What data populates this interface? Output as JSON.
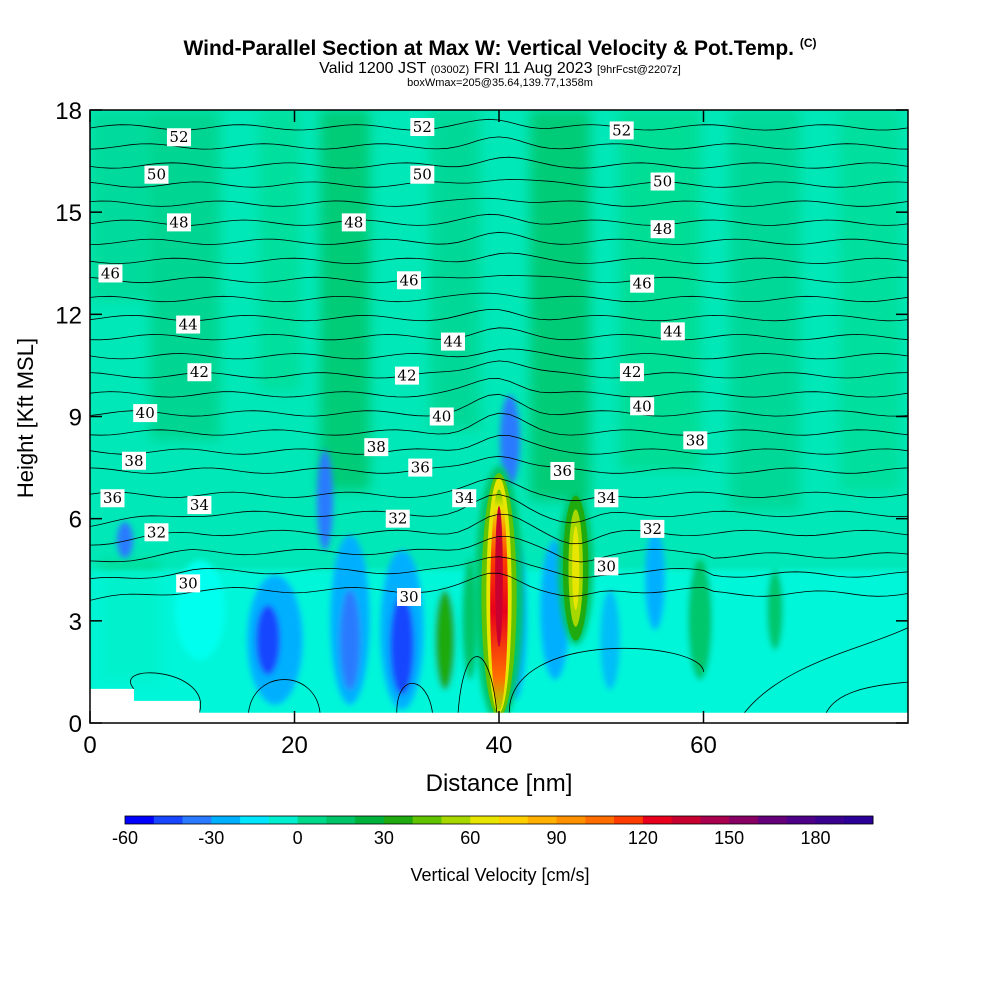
{
  "header": {
    "title_main": "Wind-Parallel Section at Max W: Vertical Velocity & Pot.Temp.",
    "title_units": "(C)",
    "valid_prefix": "Valid 1200 JST",
    "valid_utc": "(0300Z)",
    "valid_date": "FRI 11 Aug 2023",
    "forecast_info": "[9hrFcst@2207z]",
    "box_info": "boxWmax=205@35.64,139.77,1358m"
  },
  "chart_data": {
    "type": "contour",
    "xlabel": "Distance [nm]",
    "ylabel": "Height [Kft MSL]",
    "xlim": [
      0,
      80
    ],
    "ylim": [
      0,
      18
    ],
    "x_ticks": [
      0,
      20,
      40,
      60
    ],
    "y_ticks": [
      0,
      3,
      6,
      9,
      12,
      15,
      18
    ],
    "colorbar": {
      "label": "Vertical Velocity [cm/s]",
      "min": -60,
      "max": 200,
      "step": 10,
      "tick_values": [
        -60,
        -30,
        0,
        30,
        60,
        90,
        120,
        150,
        180
      ],
      "colors": [
        "#0000ff",
        "#1846ff",
        "#2a7aff",
        "#00b0ff",
        "#00e6ff",
        "#00efcf",
        "#00d98a",
        "#00c468",
        "#00b23c",
        "#1faa10",
        "#62c400",
        "#a6d800",
        "#e8e600",
        "#ffd000",
        "#ffb000",
        "#ff9100",
        "#ff6d00",
        "#ff3c00",
        "#e8001c",
        "#c80030",
        "#aa0050",
        "#880064",
        "#66007a",
        "#4e0088",
        "#3a0090",
        "#2a0096"
      ]
    },
    "terrain": [
      [
        0,
        1.0
      ],
      [
        4.3,
        1.0
      ],
      [
        4.3,
        0.65
      ],
      [
        10.7,
        0.65
      ],
      [
        10.7,
        0.3
      ],
      [
        80,
        0.3
      ]
    ],
    "updrafts": [
      {
        "x": 40,
        "z_bottom": 0.3,
        "z_top": 7.2,
        "w_max": 205
      },
      {
        "x": 47.5,
        "z_bottom": 2.5,
        "z_top": 6.6,
        "w_max": 60
      }
    ],
    "theta_labels": [
      {
        "value": "52",
        "x": 8.7,
        "y": 17.2
      },
      {
        "value": "52",
        "x": 32.5,
        "y": 17.5
      },
      {
        "value": "52",
        "x": 52,
        "y": 17.4
      },
      {
        "value": "50",
        "x": 6.5,
        "y": 16.1
      },
      {
        "value": "50",
        "x": 32.5,
        "y": 16.1
      },
      {
        "value": "50",
        "x": 56,
        "y": 15.9
      },
      {
        "value": "48",
        "x": 8.7,
        "y": 14.7
      },
      {
        "value": "48",
        "x": 25.8,
        "y": 14.7
      },
      {
        "value": "48",
        "x": 56,
        "y": 14.5
      },
      {
        "value": "46",
        "x": 2,
        "y": 13.2
      },
      {
        "value": "46",
        "x": 31.2,
        "y": 13.0
      },
      {
        "value": "46",
        "x": 54,
        "y": 12.9
      },
      {
        "value": "44",
        "x": 9.6,
        "y": 11.7
      },
      {
        "value": "44",
        "x": 35.5,
        "y": 11.2
      },
      {
        "value": "44",
        "x": 57,
        "y": 11.5
      },
      {
        "value": "42",
        "x": 10.7,
        "y": 10.3
      },
      {
        "value": "42",
        "x": 31,
        "y": 10.2
      },
      {
        "value": "42",
        "x": 53,
        "y": 10.3
      },
      {
        "value": "40",
        "x": 5.4,
        "y": 9.1
      },
      {
        "value": "40",
        "x": 34.4,
        "y": 9.0
      },
      {
        "value": "40",
        "x": 54,
        "y": 9.3
      },
      {
        "value": "38",
        "x": 4.3,
        "y": 7.7
      },
      {
        "value": "38",
        "x": 28,
        "y": 8.1
      },
      {
        "value": "38",
        "x": 59.2,
        "y": 8.3
      },
      {
        "value": "36",
        "x": 2.2,
        "y": 6.6
      },
      {
        "value": "36",
        "x": 32.3,
        "y": 7.5
      },
      {
        "value": "36",
        "x": 46.2,
        "y": 7.4
      },
      {
        "value": "34",
        "x": 10.7,
        "y": 6.4
      },
      {
        "value": "34",
        "x": 36.6,
        "y": 6.6
      },
      {
        "value": "34",
        "x": 50.5,
        "y": 6.6
      },
      {
        "value": "32",
        "x": 6.5,
        "y": 5.6
      },
      {
        "value": "32",
        "x": 30.1,
        "y": 6.0
      },
      {
        "value": "32",
        "x": 55,
        "y": 5.7
      },
      {
        "value": "30",
        "x": 9.6,
        "y": 4.1
      },
      {
        "value": "30",
        "x": 31.2,
        "y": 3.7
      },
      {
        "value": "30",
        "x": 50.5,
        "y": 4.6
      }
    ]
  }
}
